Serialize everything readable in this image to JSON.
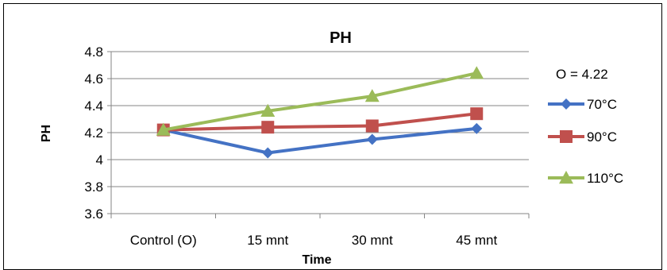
{
  "chart_data": {
    "type": "line",
    "title": "PH",
    "xlabel": "Time",
    "ylabel": "PH",
    "categories": [
      "Control (O)",
      "15 mnt",
      "30 mnt",
      "45 mnt"
    ],
    "ylim": [
      3.6,
      4.8
    ],
    "yticks": [
      "3.6",
      "3.8",
      "4",
      "4.2",
      "4.4",
      "4.6",
      "4.8"
    ],
    "grid": true,
    "legend_position": "right",
    "legend_note": "O = 4.22",
    "series": [
      {
        "name": "70°C",
        "values": [
          4.22,
          4.05,
          4.15,
          4.23
        ],
        "color": "#4472C4",
        "marker": "diamond"
      },
      {
        "name": "90°C",
        "values": [
          4.22,
          4.24,
          4.25,
          4.34
        ],
        "color": "#C0504D",
        "marker": "square"
      },
      {
        "name": "110°C",
        "values": [
          4.22,
          4.36,
          4.47,
          4.64
        ],
        "color": "#9BBB59",
        "marker": "triangle"
      }
    ]
  }
}
